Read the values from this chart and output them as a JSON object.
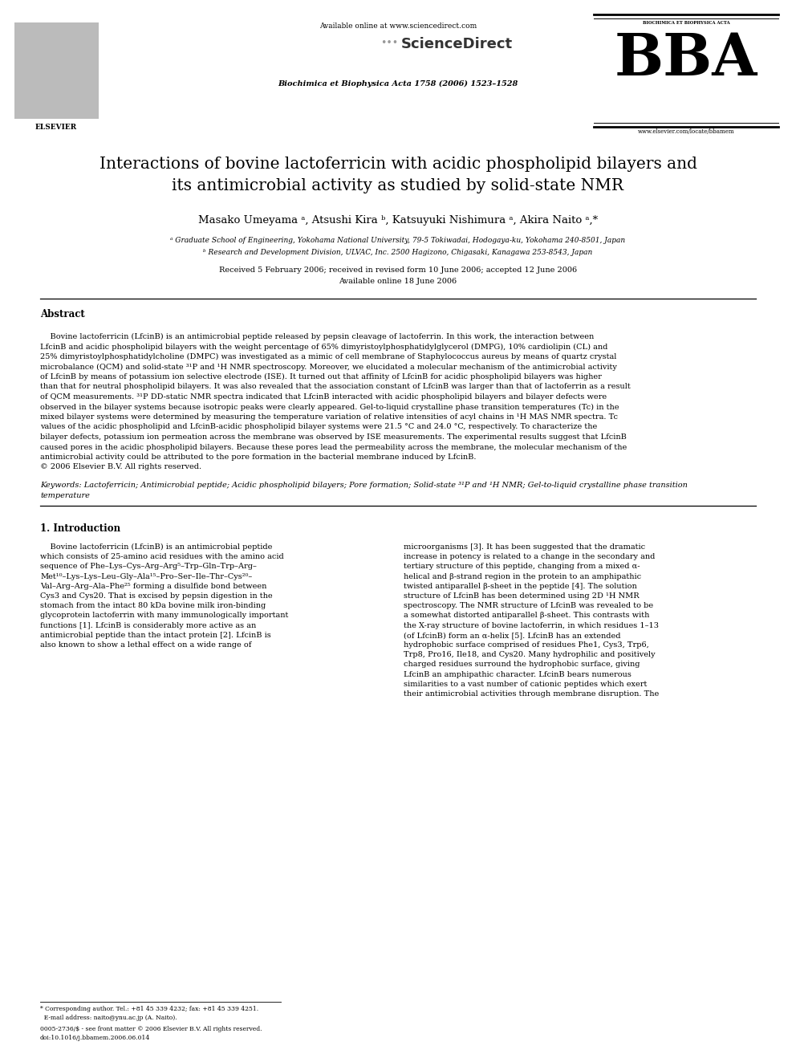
{
  "page_width": 9.92,
  "page_height": 13.23,
  "dpi": 100,
  "background_color": "#ffffff",
  "header": {
    "available_online": "Available online at www.sciencedirect.com",
    "journal_name": "Biochimica et Biophysica Acta 1758 (2006) 1523–1528",
    "website": "www.elsevier.com/locate/bbamem"
  },
  "title_line1": "Interactions of bovine lactoferricin with acidic phospholipid bilayers and",
  "title_line2": "its antimicrobial activity as studied by solid-state NMR",
  "authors": "Masako Umeyama ᵃ, Atsushi Kira ᵇ, Katsuyuki Nishimura ᵃ, Akira Naito ᵃ,*",
  "affiliation_a": "ᵃ Graduate School of Engineering, Yokohama National University, 79-5 Tokiwadai, Hodogaya-ku, Yokohama 240-8501, Japan",
  "affiliation_b": "ᵇ Research and Development Division, ULVAC, Inc. 2500 Hagizono, Chigasaki, Kanagawa 253-8543, Japan",
  "received": "Received 5 February 2006; received in revised form 10 June 2006; accepted 12 June 2006",
  "available_online_date": "Available online 18 June 2006",
  "abstract_title": "Abstract",
  "abstract_lines": [
    "    Bovine lactoferricin (LfcinB) is an antimicrobial peptide released by pepsin cleavage of lactoferrin. In this work, the interaction between",
    "LfcinB and acidic phospholipid bilayers with the weight percentage of 65% dimyristoylphosphatidylglycerol (DMPG), 10% cardiolipin (CL) and",
    "25% dimyristoylphosphatidylcholine (DMPC) was investigated as a mimic of cell membrane of Staphylococcus aureus by means of quartz crystal",
    "microbalance (QCM) and solid-state ³¹P and ¹H NMR spectroscopy. Moreover, we elucidated a molecular mechanism of the antimicrobial activity",
    "of LfcinB by means of potassium ion selective electrode (ISE). It turned out that affinity of LfcinB for acidic phospholipid bilayers was higher",
    "than that for neutral phospholipid bilayers. It was also revealed that the association constant of LfcinB was larger than that of lactoferrin as a result",
    "of QCM measurements. ³¹P DD-static NMR spectra indicated that LfcinB interacted with acidic phospholipid bilayers and bilayer defects were",
    "observed in the bilayer systems because isotropic peaks were clearly appeared. Gel-to-liquid crystalline phase transition temperatures (Tc) in the",
    "mixed bilayer systems were determined by measuring the temperature variation of relative intensities of acyl chains in ¹H MAS NMR spectra. Tc",
    "values of the acidic phospholipid and LfcinB-acidic phospholipid bilayer systems were 21.5 °C and 24.0 °C, respectively. To characterize the",
    "bilayer defects, potassium ion permeation across the membrane was observed by ISE measurements. The experimental results suggest that LfcinB",
    "caused pores in the acidic phospholipid bilayers. Because these pores lead the permeability across the membrane, the molecular mechanism of the",
    "antimicrobial activity could be attributed to the pore formation in the bacterial membrane induced by LfcinB.",
    "© 2006 Elsevier B.V. All rights reserved."
  ],
  "keywords_line1": "Keywords: Lactoferricin; Antimicrobial peptide; Acidic phospholipid bilayers; Pore formation; Solid-state ³¹P and ¹H NMR; Gel-to-liquid crystalline phase transition",
  "keywords_line2": "temperature",
  "section1_title": "1. Introduction",
  "intro_left_lines": [
    "    Bovine lactoferricin (LfcinB) is an antimicrobial peptide",
    "which consists of 25-amino acid residues with the amino acid",
    "sequence of Phe–Lys–Cys–Arg–Arg⁵–Trp–Gln–Trp–Arg–",
    "Met¹⁰–Lys–Lys–Leu–Gly–Ala¹⁵–Pro–Ser–Ile–Thr–Cys²⁰–",
    "Val–Arg–Arg–Ala–Phe²⁵ forming a disulfide bond between",
    "Cys3 and Cys20. That is excised by pepsin digestion in the",
    "stomach from the intact 80 kDa bovine milk iron-binding",
    "glycoprotein lactoferrin with many immunologically important",
    "functions [1]. LfcinB is considerably more active as an",
    "antimicrobial peptide than the intact protein [2]. LfcinB is",
    "also known to show a lethal effect on a wide range of"
  ],
  "intro_right_lines": [
    "microorganisms [3]. It has been suggested that the dramatic",
    "increase in potency is related to a change in the secondary and",
    "tertiary structure of this peptide, changing from a mixed α-",
    "helical and β-strand region in the protein to an amphipathic",
    "twisted antiparallel β-sheet in the peptide [4]. The solution",
    "structure of LfcinB has been determined using 2D ¹H NMR",
    "spectroscopy. The NMR structure of LfcinB was revealed to be",
    "a somewhat distorted antiparallel β-sheet. This contrasts with",
    "the X-ray structure of bovine lactoferrin, in which residues 1–13",
    "(of LfcinB) form an α-helix [5]. LfcinB has an extended",
    "hydrophobic surface comprised of residues Phe1, Cys3, Trp6,",
    "Trp8, Pro16, Ile18, and Cys20. Many hydrophilic and positively",
    "charged residues surround the hydrophobic surface, giving",
    "LfcinB an amphipathic character. LfcinB bears numerous",
    "similarities to a vast number of cationic peptides which exert",
    "their antimicrobial activities through membrane disruption. The"
  ],
  "footer_star": "* Corresponding author. Tel.: +81 45 339 4232; fax: +81 45 339 4251.",
  "footer_email": "  E-mail address: naito@ynu.ac.jp (A. Naito).",
  "footer_issn": "0005-2736/$ - see front matter © 2006 Elsevier B.V. All rights reserved.",
  "footer_doi": "doi:10.1016/j.bbamem.2006.06.014"
}
